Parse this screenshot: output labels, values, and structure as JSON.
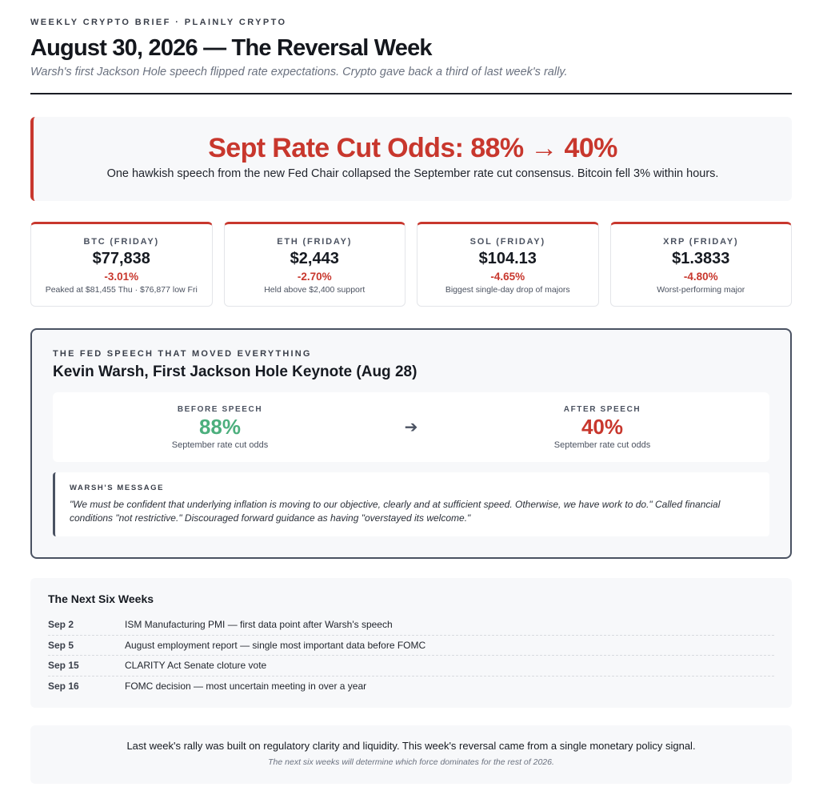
{
  "header": {
    "kicker": "WEEKLY CRYPTO BRIEF · PLAINLY CRYPTO",
    "title": "August 30, 2026 — The Reversal Week",
    "subtitle": "Warsh's first Jackson Hole speech flipped rate expectations. Crypto gave back a third of last week's rally."
  },
  "hero": {
    "title": "Sept Rate Cut Odds: 88% → 40%",
    "text": "One hawkish speech from the new Fed Chair collapsed the September rate cut consensus. Bitcoin fell 3% within hours."
  },
  "cards": [
    {
      "label": "BTC (FRIDAY)",
      "price": "$77,838",
      "change": "-3.01%",
      "note": "Peaked at $81,455 Thu · $76,877 low Fri"
    },
    {
      "label": "ETH (FRIDAY)",
      "price": "$2,443",
      "change": "-2.70%",
      "note": "Held above $2,400 support"
    },
    {
      "label": "SOL (FRIDAY)",
      "price": "$104.13",
      "change": "-4.65%",
      "note": "Biggest single-day drop of majors"
    },
    {
      "label": "XRP (FRIDAY)",
      "price": "$1.3833",
      "change": "-4.80%",
      "note": "Worst-performing major"
    }
  ],
  "fed": {
    "kicker": "THE FED SPEECH THAT MOVED EVERYTHING",
    "title": "Kevin Warsh, First Jackson Hole Keynote (Aug 28)",
    "before": {
      "label": "BEFORE SPEECH",
      "value": "88%",
      "note": "September rate cut odds"
    },
    "arrow": "➔",
    "after": {
      "label": "AFTER SPEECH",
      "value": "40%",
      "note": "September rate cut odds"
    },
    "message_label": "WARSH'S MESSAGE",
    "message_text": "\"We must be confident that underlying inflation is moving to our objective, clearly and at sufficient speed. Otherwise, we have work to do.\" Called financial conditions \"not restrictive.\" Discouraged forward guidance as having \"overstayed its welcome.\""
  },
  "timeline": {
    "title": "The Next Six Weeks",
    "rows": [
      {
        "date": "Sep 2",
        "desc": "ISM Manufacturing PMI — first data point after Warsh's speech"
      },
      {
        "date": "Sep 5",
        "desc": "August employment report — single most important data before FOMC"
      },
      {
        "date": "Sep 15",
        "desc": "CLARITY Act Senate cloture vote"
      },
      {
        "date": "Sep 16",
        "desc": "FOMC decision — most uncertain meeting in over a year"
      }
    ]
  },
  "footer": {
    "main": "Last week's rally was built on regulatory clarity and liquidity. This week's reversal came from a single monetary policy signal.",
    "sub": "The next six weeks will determine which force dominates for the rest of 2026."
  },
  "colors": {
    "accent_red": "#c8372d",
    "accent_green": "#4caf7d",
    "frame": "#4a5262"
  }
}
